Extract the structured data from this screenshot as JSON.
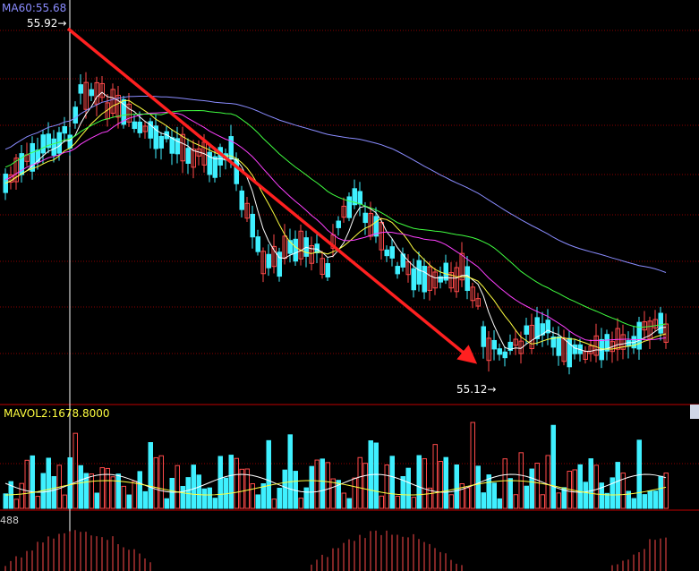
{
  "labels": {
    "ma60": "MA60:55.68",
    "mavol": "MAVOL2:1678.8000",
    "macd_value": "488",
    "high_price": "55.92",
    "low_price": "55.12",
    "arrow": "→"
  },
  "colors": {
    "background": "#000000",
    "up_candle": "#ff4a4a",
    "down_candle": "#3ff0ff",
    "ma5": "#ffffff",
    "ma10": "#ffff40",
    "ma20": "#ff40ff",
    "ma30": "#40ff40",
    "ma60": "#8a8cff",
    "trend_arrow": "#ff2020",
    "grid": "#8b0000"
  },
  "chart_data": {
    "type": "candlestick",
    "title": "",
    "price_high": 55.92,
    "price_low": 55.12,
    "ma60_value": 55.68,
    "mavol2_value": 1678.8,
    "trend": "downtrend from 55.92 high to 55.12 low",
    "panels": [
      "price",
      "volume",
      "macd"
    ]
  }
}
